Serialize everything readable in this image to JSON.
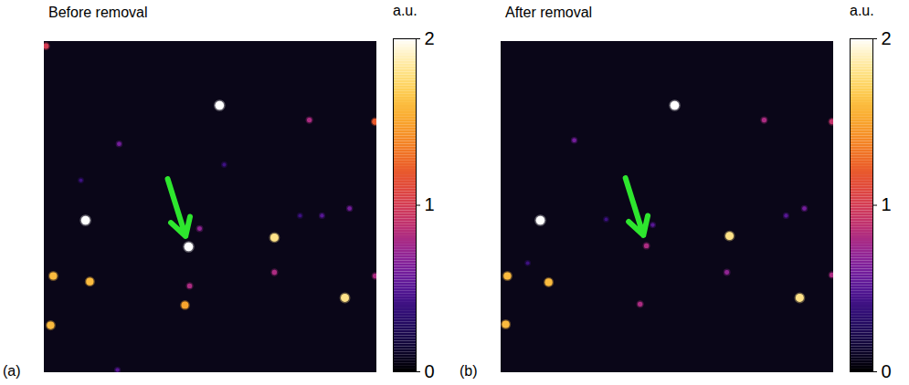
{
  "chart_data": [
    {
      "type": "scatter",
      "title": "Before removal",
      "panel_label": "(a)",
      "xlim": [
        0,
        100
      ],
      "ylim": [
        0,
        100
      ],
      "tick_labels": false,
      "x": [
        52.7,
        79.7,
        22.5,
        12.4,
        43.4,
        46.7,
        69.2,
        83.5,
        91.8,
        2.7,
        13.7,
        43.7,
        42.3,
        69.2,
        90.4,
        1.9,
        99.5,
        99.5,
        54.1,
        0.5,
        22.0,
        76.9,
        11.0
      ],
      "y": [
        80.7,
        76.3,
        69.1,
        46.0,
        38.0,
        43.5,
        40.8,
        47.4,
        49.6,
        29.2,
        27.5,
        26.2,
        20.4,
        30.3,
        22.6,
        14.3,
        75.8,
        29.2,
        62.8,
        98.6,
        0.8,
        47.4,
        58.1
      ],
      "values": [
        2,
        0.8,
        0.6,
        2,
        2,
        0.7,
        1.8,
        0.5,
        0.6,
        1.6,
        1.6,
        0.8,
        1.5,
        0.8,
        1.8,
        1.6,
        1.2,
        0.8,
        0.4,
        1.0,
        0.5,
        0.4,
        0.4
      ],
      "marked": [
        false,
        false,
        false,
        false,
        true,
        false,
        false,
        false,
        false,
        false,
        false,
        false,
        false,
        false,
        false,
        false,
        false,
        false,
        false,
        false,
        false,
        false,
        false
      ],
      "colorbar": {
        "label": "a.u.",
        "range": [
          0,
          2
        ],
        "ticks": [
          0,
          1,
          2
        ]
      }
    },
    {
      "type": "scatter",
      "title": "After removal",
      "panel_label": "(b)",
      "xlim": [
        0,
        100
      ],
      "ylim": [
        0,
        100
      ],
      "tick_labels": false,
      "x": [
        52.2,
        79.1,
        22.0,
        11.8,
        43.7,
        68.7,
        85.7,
        91.2,
        1.9,
        14.3,
        67.9,
        89.8,
        41.8,
        1.4,
        99.5,
        99.5,
        45.6,
        31.6,
        8.0
      ],
      "y": [
        80.7,
        76.3,
        70.2,
        46.0,
        38.3,
        41.3,
        47.4,
        49.6,
        29.2,
        27.3,
        30.3,
        22.6,
        20.7,
        14.6,
        29.5,
        75.8,
        44.6,
        46.3,
        33.1
      ],
      "values": [
        2,
        0.8,
        0.6,
        2,
        0.8,
        1.8,
        0.5,
        0.6,
        1.6,
        1.6,
        0.7,
        1.8,
        0.8,
        1.6,
        0.8,
        0.9,
        0.5,
        0.4,
        0.4
      ],
      "marked": [
        false,
        false,
        false,
        false,
        true,
        false,
        false,
        false,
        false,
        false,
        false,
        false,
        false,
        false,
        false,
        false,
        false,
        false,
        false
      ],
      "colorbar": {
        "label": "a.u.",
        "range": [
          0,
          2
        ],
        "ticks": [
          0,
          1,
          2
        ]
      }
    }
  ]
}
